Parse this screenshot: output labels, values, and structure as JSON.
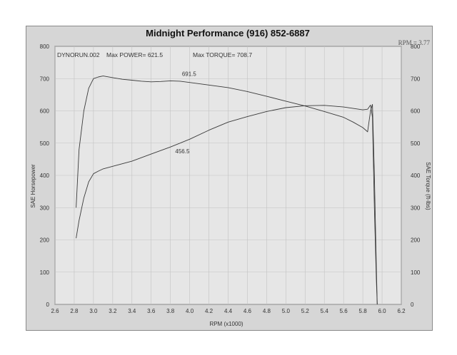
{
  "chart_data": {
    "type": "line",
    "title": "Midnight Performance (916) 852-6887",
    "gear_ratio": "RPM = 3.77",
    "run_label": "DYNORUN.002",
    "max_power_label": "Max POWER= 621.5",
    "max_torque_label": "Max TORQUE= 708.7",
    "xlabel": "RPM (x1000)",
    "ylabel_left": "SAE Horsepower",
    "ylabel_right": "SAE Torque (ft-lbs)",
    "xlim": [
      2.6,
      6.2
    ],
    "ylim": [
      0,
      800
    ],
    "xticks": [
      "2.6",
      "2.8",
      "3.0",
      "3.2",
      "3.4",
      "3.6",
      "3.8",
      "4.0",
      "4.2",
      "4.4",
      "4.6",
      "4.8",
      "5.0",
      "5.2",
      "5.4",
      "5.6",
      "5.8",
      "6.0",
      "6.2"
    ],
    "yticks_left": [
      "0",
      "100",
      "200",
      "300",
      "400",
      "500",
      "600",
      "700",
      "800"
    ],
    "yticks_right": [
      "0",
      "100",
      "200",
      "300",
      "400",
      "500",
      "600",
      "700",
      "800"
    ],
    "grid": true,
    "series": [
      {
        "key": "torque",
        "x": [
          2.82,
          2.85,
          2.9,
          2.95,
          3.0,
          3.05,
          3.1,
          3.2,
          3.3,
          3.4,
          3.5,
          3.6,
          3.7,
          3.8,
          3.9,
          4.0,
          4.2,
          4.4,
          4.6,
          4.8,
          5.0,
          5.2,
          5.4,
          5.6,
          5.7,
          5.8,
          5.85,
          5.88,
          5.9,
          5.92,
          5.94,
          5.95
        ],
        "values": [
          300,
          480,
          600,
          670,
          700,
          705,
          708,
          703,
          698,
          695,
          692,
          690,
          691,
          693,
          692,
          688,
          680,
          672,
          660,
          645,
          630,
          615,
          598,
          580,
          565,
          548,
          535,
          600,
          620,
          400,
          120,
          0
        ]
      },
      {
        "key": "power",
        "x": [
          2.82,
          2.85,
          2.9,
          2.95,
          3.0,
          3.05,
          3.1,
          3.2,
          3.4,
          3.6,
          3.8,
          4.0,
          4.2,
          4.4,
          4.6,
          4.8,
          5.0,
          5.2,
          5.4,
          5.6,
          5.8,
          5.85,
          5.88,
          5.9,
          5.92,
          5.94,
          5.95
        ],
        "values": [
          205,
          260,
          330,
          380,
          405,
          413,
          420,
          428,
          444,
          466,
          488,
          512,
          540,
          565,
          582,
          598,
          610,
          616,
          617,
          612,
          603,
          605,
          618,
          580,
          300,
          80,
          0
        ]
      }
    ],
    "annotations": [
      {
        "label": "691.5",
        "x": 3.92,
        "y": 700
      },
      {
        "label": "456.5",
        "x": 3.85,
        "y": 460
      }
    ]
  }
}
